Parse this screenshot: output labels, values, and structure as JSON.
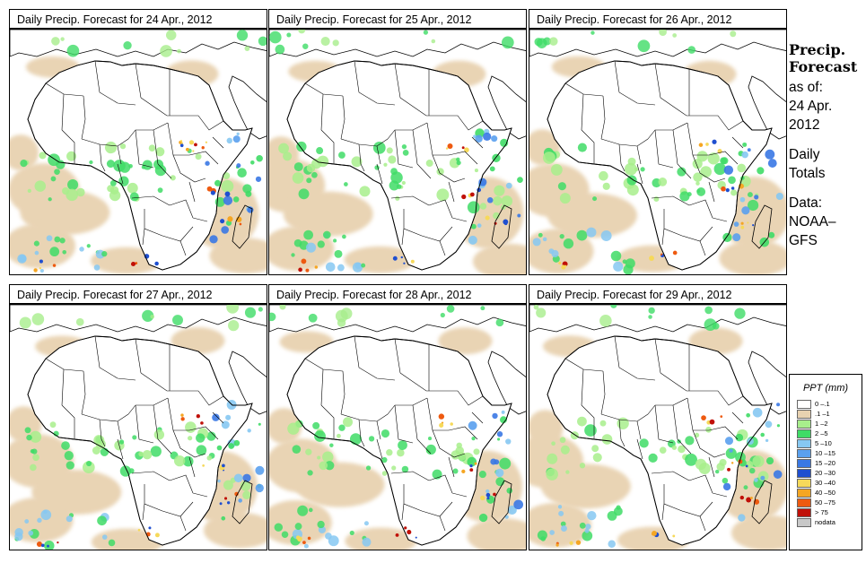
{
  "panels": [
    {
      "title": "Daily Precip. Forecast for  24 Apr., 2012"
    },
    {
      "title": "Daily Precip. Forecast for  25 Apr., 2012"
    },
    {
      "title": "Daily Precip. Forecast for  26 Apr., 2012"
    },
    {
      "title": "Daily Precip. Forecast for  27 Apr., 2012"
    },
    {
      "title": "Daily Precip. Forecast for  28 Apr., 2012"
    },
    {
      "title": "Daily Precip. Forecast for  29 Apr., 2012"
    }
  ],
  "info": {
    "title_line1": "Precip.",
    "title_line2": "Forecast",
    "asof_line1": "as of:",
    "asof_line2": "24 Apr.",
    "asof_line3": "2012",
    "totals_line1": "Daily",
    "totals_line2": "Totals",
    "data_line1": "Data:",
    "data_line2": "NOAA–",
    "data_line3": "GFS"
  },
  "legend": {
    "title": "PPT (mm)",
    "items": [
      {
        "label": "0 –.1",
        "color": "#ffffff"
      },
      {
        "label": ".1 –1",
        "color": "#e8d2b0"
      },
      {
        "label": "1 –2",
        "color": "#a8ee8c"
      },
      {
        "label": "2 –5",
        "color": "#3fdc66"
      },
      {
        "label": "5 –10",
        "color": "#86c8f2"
      },
      {
        "label": "10 –15",
        "color": "#5aa0ee"
      },
      {
        "label": "15 –20",
        "color": "#3a78e4"
      },
      {
        "label": "20 –30",
        "color": "#1f4fd0"
      },
      {
        "label": "30 –40",
        "color": "#f6d95a"
      },
      {
        "label": "40 –50",
        "color": "#f5a623"
      },
      {
        "label": "50 –75",
        "color": "#ee5a10"
      },
      {
        "label": "> 75",
        "color": "#c01008"
      },
      {
        "label": "nodata",
        "color": "#c8c8c8"
      }
    ]
  }
}
